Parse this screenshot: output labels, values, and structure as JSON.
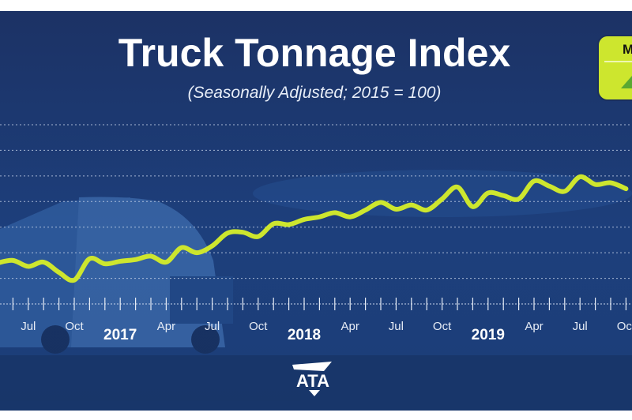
{
  "chart_data": {
    "type": "line",
    "title": "Truck Tonnage Index",
    "subtitle": "(Seasonally Adjusted; 2015 = 100)",
    "xlabel": "",
    "ylabel": "",
    "ylim": [
      103,
      124
    ],
    "grid": true,
    "gridlines": [
      106,
      109,
      112,
      115,
      118,
      121,
      124
    ],
    "line_color": "#cde62e",
    "x": [
      "2016-05",
      "2016-06",
      "2016-07",
      "2016-08",
      "2016-09",
      "2016-10",
      "2016-11",
      "2016-12",
      "2017-01",
      "2017-02",
      "2017-03",
      "2017-04",
      "2017-05",
      "2017-06",
      "2017-07",
      "2017-08",
      "2017-09",
      "2017-10",
      "2017-11",
      "2017-12",
      "2018-01",
      "2018-02",
      "2018-03",
      "2018-04",
      "2018-05",
      "2018-06",
      "2018-07",
      "2018-08",
      "2018-09",
      "2018-10",
      "2018-11",
      "2018-12",
      "2019-01",
      "2019-02",
      "2019-03",
      "2019-04",
      "2019-05",
      "2019-06",
      "2019-07",
      "2019-08",
      "2019-09",
      "2019-10"
    ],
    "values": [
      107.8,
      108.1,
      107.4,
      107.9,
      106.7,
      105.8,
      108.3,
      107.7,
      108.0,
      108.2,
      108.6,
      107.9,
      109.6,
      109.0,
      109.8,
      111.3,
      111.4,
      110.9,
      112.4,
      112.3,
      112.9,
      113.2,
      113.7,
      113.2,
      114.0,
      114.9,
      114.1,
      114.6,
      114.0,
      115.3,
      116.7,
      114.4,
      116.0,
      115.7,
      115.3,
      117.4,
      116.8,
      116.2,
      117.9,
      117.0,
      117.2,
      116.5
    ],
    "tick_labels": [
      {
        "month": "2016-07",
        "label": "Jul"
      },
      {
        "month": "2016-10",
        "label": "Oct"
      },
      {
        "month": "2017-01",
        "label": "2017",
        "year": true
      },
      {
        "month": "2017-04",
        "label": "Apr"
      },
      {
        "month": "2017-07",
        "label": "Jul"
      },
      {
        "month": "2017-10",
        "label": "Oct"
      },
      {
        "month": "2018-01",
        "label": "2018",
        "year": true
      },
      {
        "month": "2018-04",
        "label": "Apr"
      },
      {
        "month": "2018-07",
        "label": "Jul"
      },
      {
        "month": "2018-10",
        "label": "Oct"
      },
      {
        "month": "2019-01",
        "label": "2019",
        "year": true
      },
      {
        "month": "2019-04",
        "label": "Apr"
      },
      {
        "month": "2019-07",
        "label": "Jul"
      },
      {
        "month": "2019-10",
        "label": "Oct"
      }
    ]
  },
  "badge": {
    "text": "M",
    "color": "#cde62e",
    "arrow_color": "#5aa832",
    "icon": "up-triangle-icon"
  },
  "logo": {
    "text": "ATA"
  },
  "colors": {
    "background_top": "#1c3265",
    "background_bottom": "#1e4c8c",
    "accent": "#cde62e"
  }
}
